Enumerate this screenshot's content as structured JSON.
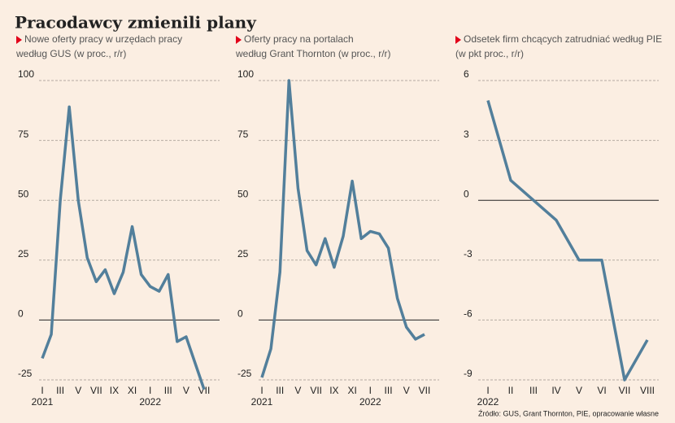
{
  "title": "Pracodawcy zmienili plany",
  "source": "Źródło: GUS, Grant Thornton, PIE, opracowanie własne",
  "chart_data": [
    {
      "type": "line",
      "subtitle": [
        "Nowe oferty pracy w urzędach pracy",
        "według GUS (w proc., r/r)"
      ],
      "categories": [
        "I",
        null,
        "III",
        null,
        "V",
        null,
        "VII",
        null,
        "IX",
        null,
        "XI",
        null,
        "I",
        null,
        "III",
        null,
        "V",
        null,
        "VII"
      ],
      "years": [
        {
          "label": "2021",
          "at": 0
        },
        {
          "label": "2022",
          "at": 12
        }
      ],
      "values": [
        -16,
        -6,
        50,
        89,
        50,
        26,
        16,
        21,
        11,
        20,
        39,
        19,
        14,
        12,
        19,
        -9,
        -7,
        -18,
        -29
      ],
      "color": "#527f9b",
      "ylim": [
        -25,
        100
      ],
      "yticks": [
        -25,
        0,
        25,
        50,
        75,
        100
      ]
    },
    {
      "type": "line",
      "subtitle": [
        "Oferty pracy na portalach",
        "według Grant Thornton (w proc., r/r)"
      ],
      "categories": [
        "I",
        null,
        "III",
        null,
        "V",
        null,
        "VII",
        null,
        "IX",
        null,
        "XI",
        null,
        "I",
        null,
        "III",
        null,
        "V",
        null,
        "VII"
      ],
      "years": [
        {
          "label": "2021",
          "at": 0
        },
        {
          "label": "2022",
          "at": 12
        }
      ],
      "values": [
        -24,
        -12,
        20,
        100,
        55,
        29,
        23,
        34,
        22,
        35,
        58,
        34,
        37,
        36,
        30,
        9,
        -3,
        -8,
        -6
      ],
      "color": "#527f9b",
      "ylim": [
        -25,
        100
      ],
      "yticks": [
        -25,
        0,
        25,
        50,
        75,
        100
      ]
    },
    {
      "type": "line",
      "subtitle": [
        "Odsetek firm chcących zatrudniać według PIE",
        "(w pkt proc., r/r)"
      ],
      "categories": [
        "I",
        "II",
        "III",
        "IV",
        "V",
        "VI",
        "VII",
        "VIII"
      ],
      "years": [
        {
          "label": "2022",
          "at": 0
        }
      ],
      "values": [
        5,
        1,
        0,
        -1,
        -3,
        -3,
        -9,
        -7
      ],
      "color": "#527f9b",
      "ylim": [
        -9,
        6
      ],
      "yticks": [
        -9,
        -6,
        -3,
        0,
        3,
        6
      ]
    }
  ]
}
